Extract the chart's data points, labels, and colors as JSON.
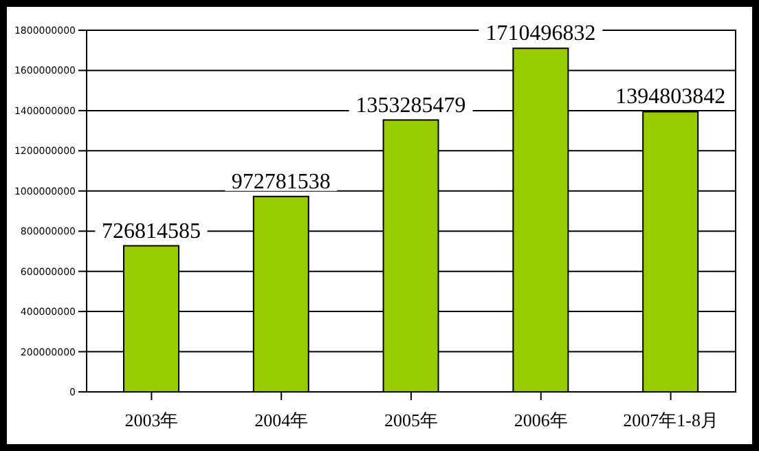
{
  "chart_data": {
    "type": "bar",
    "categories": [
      "2003年",
      "2004年",
      "2005年",
      "2006年",
      "2007年1-8月"
    ],
    "values": [
      726814585,
      972781538,
      1353285479,
      1710496832,
      1394803842
    ],
    "color": "#99cc00",
    "ylim": [
      0,
      1800000000
    ],
    "yticks": [
      0,
      200000000,
      400000000,
      600000000,
      800000000,
      1000000000,
      1200000000,
      1400000000,
      1600000000,
      1800000000
    ],
    "grid": "y",
    "data_labels": true,
    "legend": false
  }
}
